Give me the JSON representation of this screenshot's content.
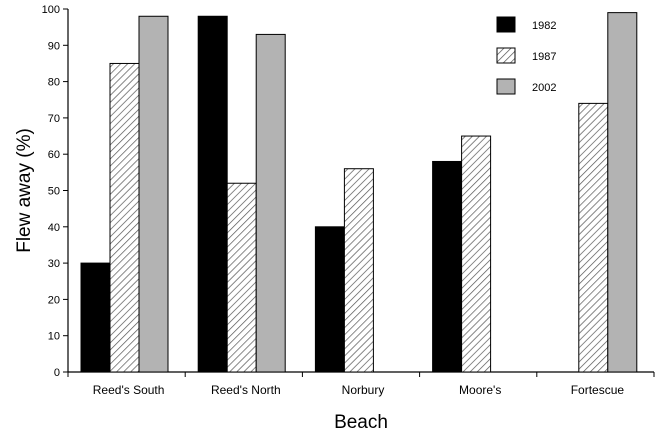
{
  "chart_data": {
    "type": "bar",
    "xlabel": "Beach",
    "ylabel": "Flew away (%)",
    "ylim": [
      0,
      100
    ],
    "yticks": [
      0,
      10,
      20,
      30,
      40,
      50,
      60,
      70,
      80,
      90,
      100
    ],
    "categories": [
      "Reed's South",
      "Reed's North",
      "Norbury",
      "Moore's",
      "Fortescue"
    ],
    "series": [
      {
        "name": "1982",
        "values": [
          30,
          98,
          40,
          58,
          null
        ],
        "fill": "#000000"
      },
      {
        "name": "1987",
        "values": [
          85,
          52,
          56,
          65,
          74
        ],
        "fill": "hatch"
      },
      {
        "name": "2002",
        "values": [
          98,
          93,
          null,
          null,
          99
        ],
        "fill": "#b3b3b3"
      }
    ],
    "legend_position": "top-right",
    "grid": false
  }
}
